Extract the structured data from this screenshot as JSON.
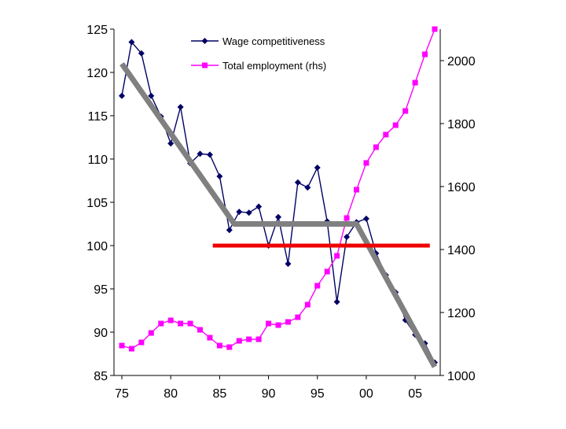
{
  "chart_data": {
    "type": "line",
    "title": "",
    "xlabel": "",
    "ylabel": "",
    "y2label": "",
    "x_range": [
      1975,
      2007
    ],
    "ylim": [
      85,
      125
    ],
    "y2lim": [
      1000,
      2100
    ],
    "x_ticks": [
      {
        "value": 1975,
        "label": "75"
      },
      {
        "value": 1980,
        "label": "80"
      },
      {
        "value": 1985,
        "label": "85"
      },
      {
        "value": 1990,
        "label": "90"
      },
      {
        "value": 1995,
        "label": "95"
      },
      {
        "value": 2000,
        "label": "00"
      },
      {
        "value": 2005,
        "label": "05"
      }
    ],
    "y_ticks": [
      {
        "value": 85,
        "label": "85"
      },
      {
        "value": 90,
        "label": "90"
      },
      {
        "value": 95,
        "label": "95"
      },
      {
        "value": 100,
        "label": "100"
      },
      {
        "value": 105,
        "label": "105"
      },
      {
        "value": 110,
        "label": "110"
      },
      {
        "value": 115,
        "label": "115"
      },
      {
        "value": 120,
        "label": "120"
      },
      {
        "value": 125,
        "label": "125"
      }
    ],
    "y2_ticks": [
      {
        "value": 1000,
        "label": "1000"
      },
      {
        "value": 1200,
        "label": "1200"
      },
      {
        "value": 1400,
        "label": "1400"
      },
      {
        "value": 1600,
        "label": "1600"
      },
      {
        "value": 1800,
        "label": "1800"
      },
      {
        "value": 2000,
        "label": "2000"
      }
    ],
    "legend_position": "top-center",
    "series": [
      {
        "name": "Wage competitiveness",
        "axis": "left",
        "color": "#000066",
        "marker": "diamond",
        "x": [
          1975,
          1976,
          1977,
          1978,
          1979,
          1980,
          1981,
          1982,
          1983,
          1984,
          1985,
          1986,
          1987,
          1988,
          1989,
          1990,
          1991,
          1992,
          1993,
          1994,
          1995,
          1996,
          1997,
          1998,
          1999,
          2000,
          2001,
          2002,
          2003,
          2004,
          2005,
          2006,
          2007
        ],
        "values": [
          117.3,
          123.5,
          122.2,
          117.3,
          114.9,
          111.8,
          116,
          109.5,
          110.6,
          110.5,
          108,
          101.8,
          103.9,
          103.8,
          104.5,
          100,
          103.3,
          97.9,
          107.3,
          106.7,
          109,
          102.8,
          93.5,
          101,
          102.7,
          103.1,
          99.1,
          96.6,
          94.6,
          91.4,
          89.7,
          88.7,
          86.5
        ]
      },
      {
        "name": "Total employment (rhs)",
        "axis": "right",
        "color": "#ff00ff",
        "marker": "square",
        "x": [
          1975,
          1976,
          1977,
          1978,
          1979,
          1980,
          1981,
          1982,
          1983,
          1984,
          1985,
          1986,
          1987,
          1988,
          1989,
          1990,
          1991,
          1992,
          1993,
          1994,
          1995,
          1996,
          1997,
          1998,
          1999,
          2000,
          2001,
          2002,
          2003,
          2004,
          2005,
          2006,
          2007
        ],
        "values": [
          1095,
          1085,
          1105,
          1135,
          1165,
          1175,
          1165,
          1165,
          1145,
          1120,
          1095,
          1090,
          1110,
          1115,
          1115,
          1165,
          1160,
          1170,
          1185,
          1225,
          1285,
          1330,
          1380,
          1500,
          1590,
          1675,
          1725,
          1765,
          1795,
          1840,
          1930,
          2020,
          2100
        ]
      }
    ],
    "annotations": [
      {
        "type": "trend-line",
        "color": "#808080",
        "points": [
          {
            "x": 1975,
            "y": 121
          },
          {
            "x": 1986.5,
            "y": 102.5
          },
          {
            "x": 1999,
            "y": 102.5
          },
          {
            "x": 2007,
            "y": 86
          }
        ]
      },
      {
        "type": "reference-line",
        "color": "#ee0000",
        "y": 100,
        "x_from": 1984.3,
        "x_to": 2006.5
      }
    ]
  }
}
